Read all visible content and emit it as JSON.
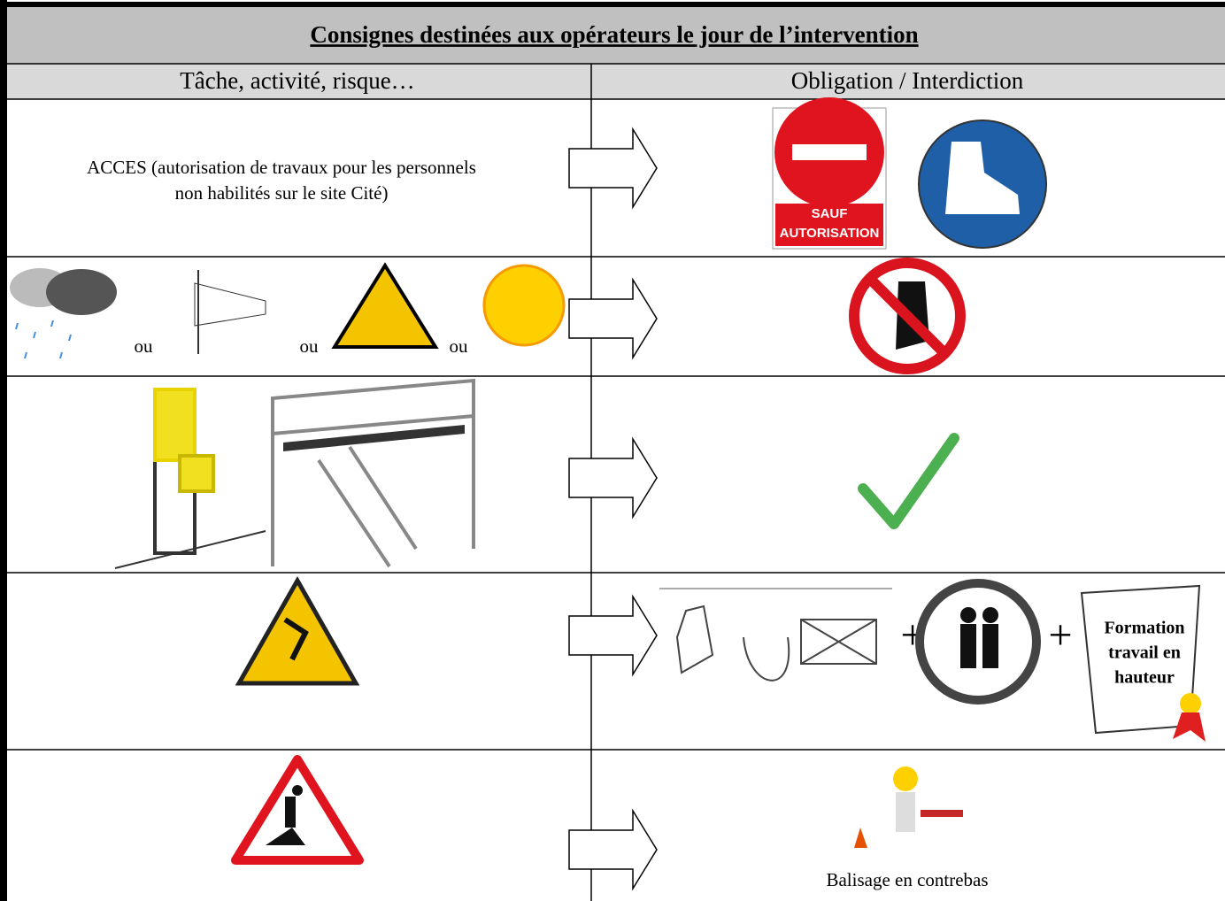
{
  "header": {
    "title": "Consignes destinées aux opérateurs le jour de l’intervention"
  },
  "table": {
    "columns": [
      "Tâche, activité, risque…",
      "Obligation / Interdiction"
    ],
    "rows": [
      {
        "task_lines": [
          "ACCES (autorisation de travaux pour les personnels",
          "non habilités sur le site Cité)"
        ],
        "sign_text": [
          "SAUF",
          "AUTORISATION"
        ]
      },
      {
        "separators": [
          "ou",
          "ou",
          "ou"
        ]
      },
      {},
      {
        "plus": [
          "+",
          "+"
        ],
        "scroll_lines": [
          "Formation",
          "travail en",
          "hauteur"
        ]
      },
      {
        "caption": "Balisage en contrebas"
      }
    ]
  }
}
